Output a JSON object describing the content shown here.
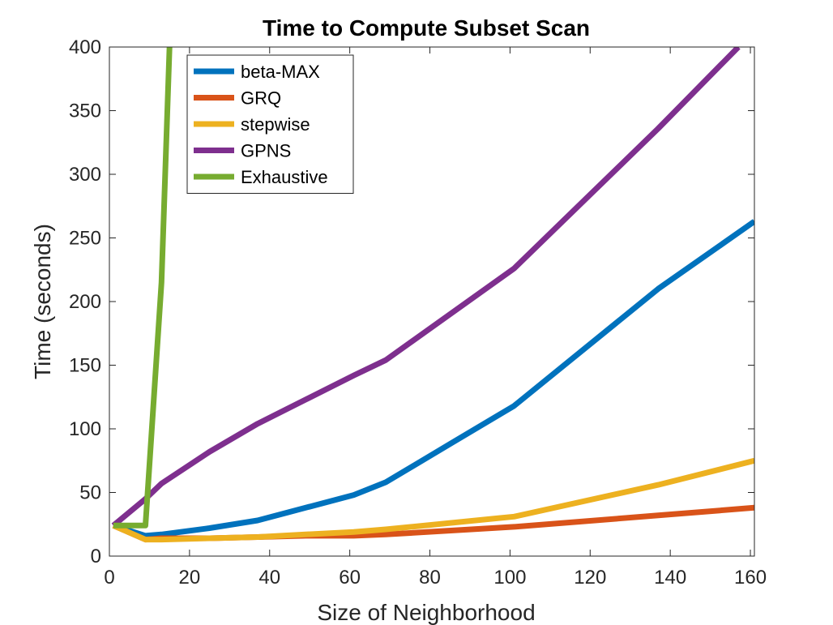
{
  "chart_data": {
    "type": "line",
    "title": "Time to Compute Subset Scan",
    "xlabel": "Size of Neighborhood",
    "ylabel": "Time (seconds)",
    "xlim": [
      0,
      161
    ],
    "ylim": [
      0,
      400
    ],
    "xticks": [
      0,
      20,
      40,
      60,
      80,
      100,
      120,
      140,
      160
    ],
    "yticks": [
      0,
      50,
      100,
      150,
      200,
      250,
      300,
      350,
      400
    ],
    "grid": false,
    "legend_position": "top-left",
    "series": [
      {
        "name": "beta-MAX",
        "color": "#0072BD",
        "points": [
          [
            1,
            24
          ],
          [
            9,
            16
          ],
          [
            13,
            17
          ],
          [
            25,
            22
          ],
          [
            37,
            28
          ],
          [
            49,
            38
          ],
          [
            61,
            48
          ],
          [
            69,
            58
          ],
          [
            85,
            88
          ],
          [
            101,
            118
          ],
          [
            137,
            210
          ],
          [
            161,
            263
          ]
        ]
      },
      {
        "name": "GRQ",
        "color": "#D95319",
        "points": [
          [
            1,
            24
          ],
          [
            9,
            13
          ],
          [
            13,
            14
          ],
          [
            25,
            14
          ],
          [
            37,
            15
          ],
          [
            49,
            16
          ],
          [
            61,
            16
          ],
          [
            69,
            17
          ],
          [
            101,
            23
          ],
          [
            137,
            32
          ],
          [
            161,
            38
          ]
        ]
      },
      {
        "name": "stepwise",
        "color": "#EDB120",
        "points": [
          [
            1,
            24
          ],
          [
            9,
            13
          ],
          [
            13,
            13
          ],
          [
            25,
            14
          ],
          [
            37,
            15
          ],
          [
            49,
            17
          ],
          [
            61,
            19
          ],
          [
            69,
            21
          ],
          [
            101,
            31
          ],
          [
            137,
            56
          ],
          [
            161,
            75
          ]
        ]
      },
      {
        "name": "GPNS",
        "color": "#7E2F8E",
        "points": [
          [
            1,
            24
          ],
          [
            9,
            45
          ],
          [
            13,
            57
          ],
          [
            25,
            82
          ],
          [
            37,
            104
          ],
          [
            49,
            123
          ],
          [
            61,
            142
          ],
          [
            69,
            154
          ],
          [
            101,
            226
          ],
          [
            137,
            336
          ],
          [
            157,
            400
          ]
        ]
      },
      {
        "name": "Exhaustive",
        "color": "#77AC30",
        "points": [
          [
            1,
            24
          ],
          [
            9,
            24
          ],
          [
            13,
            215
          ],
          [
            15,
            400
          ]
        ]
      }
    ]
  }
}
